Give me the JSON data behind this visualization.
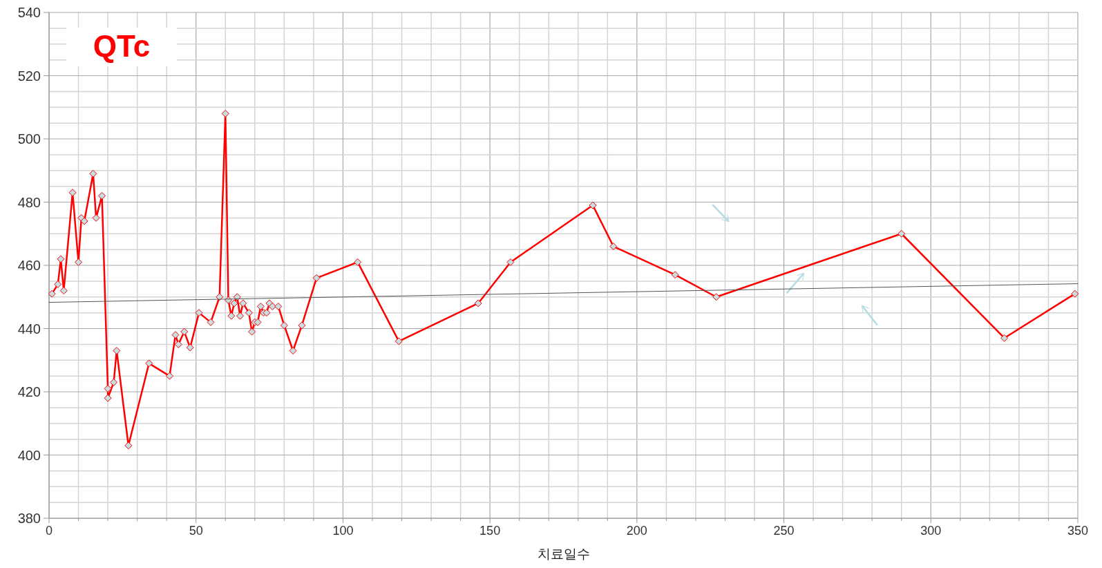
{
  "chart_data": {
    "type": "line",
    "title": "QTc",
    "xlabel": "치료일수",
    "xlim": [
      0,
      350
    ],
    "xticks": [
      0,
      {
        "value": 10,
        "label": null
      },
      {
        "value": 20,
        "label": null
      },
      {
        "value": 30,
        "label": null
      },
      {
        "value": 40,
        "label": null
      },
      50,
      {
        "value": 60,
        "label": null
      },
      {
        "value": 70,
        "label": null
      },
      {
        "value": 80,
        "label": null
      },
      {
        "value": 90,
        "label": null
      },
      100,
      {
        "value": 110,
        "label": null
      },
      {
        "value": 120,
        "label": null
      },
      {
        "value": 130,
        "label": null
      },
      {
        "value": 140,
        "label": null
      },
      150,
      {
        "value": 160,
        "label": null
      },
      {
        "value": 170,
        "label": null
      },
      {
        "value": 180,
        "label": null
      },
      {
        "value": 190,
        "label": null
      },
      200,
      {
        "value": 210,
        "label": null
      },
      {
        "value": 220,
        "label": null
      },
      {
        "value": 230,
        "label": null
      },
      {
        "value": 240,
        "label": null
      },
      250,
      {
        "value": 260,
        "label": null
      },
      {
        "value": 270,
        "label": null
      },
      {
        "value": 280,
        "label": null
      },
      {
        "value": 290,
        "label": null
      },
      300,
      {
        "value": 310,
        "label": null
      },
      {
        "value": 320,
        "label": null
      },
      {
        "value": 330,
        "label": null
      },
      {
        "value": 340,
        "label": null
      },
      350
    ],
    "ylim": [
      380,
      540
    ],
    "yticks": [
      380,
      {
        "value": 385,
        "label": null
      },
      {
        "value": 390,
        "label": null
      },
      {
        "value": 395,
        "label": null
      },
      400,
      {
        "value": 405,
        "label": null
      },
      {
        "value": 410,
        "label": null
      },
      {
        "value": 415,
        "label": null
      },
      420,
      {
        "value": 425,
        "label": null
      },
      {
        "value": 430,
        "label": null
      },
      {
        "value": 435,
        "label": null
      },
      440,
      {
        "value": 445,
        "label": null
      },
      {
        "value": 450,
        "label": null
      },
      {
        "value": 455,
        "label": null
      },
      460,
      {
        "value": 465,
        "label": null
      },
      {
        "value": 470,
        "label": null
      },
      {
        "value": 475,
        "label": null
      },
      480,
      {
        "value": 485,
        "label": null
      },
      {
        "value": 490,
        "label": null
      },
      {
        "value": 495,
        "label": null
      },
      500,
      {
        "value": 505,
        "label": null
      },
      {
        "value": 510,
        "label": null
      },
      {
        "value": 515,
        "label": null
      },
      520,
      {
        "value": 525,
        "label": null
      },
      {
        "value": 530,
        "label": null
      },
      {
        "value": 535,
        "label": null
      },
      540
    ],
    "grid": true,
    "series": [
      {
        "type": "line",
        "color": "#ff0000",
        "marker": "diamond",
        "x": [
          1,
          3,
          4,
          5,
          8,
          10,
          11,
          12,
          15,
          16,
          18,
          20,
          20,
          22,
          23,
          27,
          34,
          41,
          43,
          44,
          46,
          48,
          51,
          55,
          58,
          60,
          61,
          62,
          63,
          64,
          65,
          66,
          68,
          69,
          70,
          71,
          72,
          73,
          74,
          75,
          76,
          78,
          80,
          83,
          86,
          91,
          105,
          119,
          146,
          157,
          185,
          192,
          213,
          227,
          290,
          325,
          349
        ],
        "values": [
          451,
          454,
          462,
          452,
          483,
          461,
          475,
          474,
          489,
          475,
          482,
          421,
          418,
          423,
          433,
          403,
          429,
          425,
          438,
          435,
          439,
          434,
          445,
          442,
          450,
          508,
          449,
          444,
          448,
          450,
          444,
          448,
          445,
          439,
          442,
          442,
          447,
          445,
          445,
          448,
          447,
          447,
          441,
          433,
          441,
          456,
          461,
          436,
          448,
          461,
          479,
          466,
          457,
          450,
          470,
          437,
          451
        ]
      },
      {
        "type": "line",
        "color": "#555555",
        "marker": "none",
        "x": [
          0,
          350
        ],
        "values": [
          448.3,
          454.2
        ]
      }
    ]
  }
}
